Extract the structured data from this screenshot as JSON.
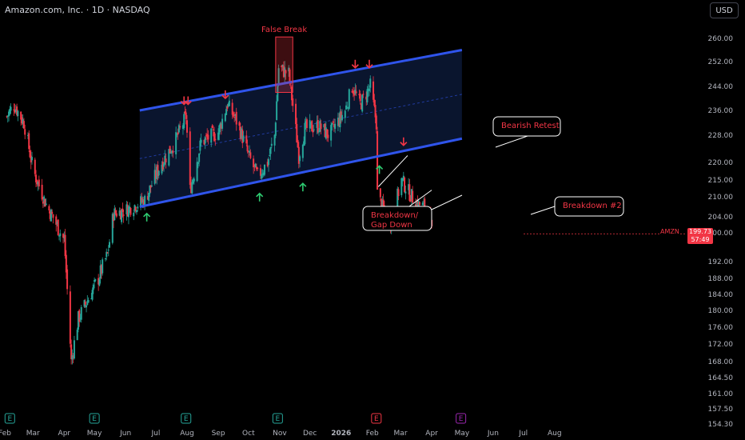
{
  "header": {
    "symbol_line": "Amazon.com, Inc. · 1D · NASDAQ",
    "currency_button": "USD"
  },
  "price_tag": {
    "ticker": "AMZN",
    "price": "199.73",
    "countdown": "57:49"
  },
  "chart_data": {
    "type": "candlestick",
    "ticker": "AMZN",
    "timeframe": "1D",
    "exchange": "NASDAQ",
    "y_axis_ticks": [
      "260.00",
      "252.00",
      "244.00",
      "236.00",
      "228.00",
      "220.00",
      "215.00",
      "210.00",
      "204.00",
      "200.00",
      "192.00",
      "188.00",
      "184.00",
      "180.00",
      "176.00",
      "172.00",
      "168.00",
      "164.50",
      "161.00",
      "157.50",
      "154.30"
    ],
    "x_axis_ticks": [
      "Feb",
      "Mar",
      "Apr",
      "May",
      "Jun",
      "Jul",
      "Aug",
      "Sep",
      "Oct",
      "Nov",
      "Dec",
      "2026",
      "Feb",
      "Mar",
      "Apr",
      "May",
      "Jun",
      "Jul",
      "Aug"
    ],
    "price_path": [
      [
        "2025-02-03",
        234
      ],
      [
        "2025-02-10",
        238
      ],
      [
        "2025-02-20",
        232
      ],
      [
        "2025-03-01",
        218
      ],
      [
        "2025-03-15",
        207
      ],
      [
        "2025-04-01",
        198
      ],
      [
        "2025-04-08",
        168
      ],
      [
        "2025-04-15",
        178
      ],
      [
        "2025-04-25",
        183
      ],
      [
        "2025-05-05",
        188
      ],
      [
        "2025-05-14",
        194
      ],
      [
        "2025-05-20",
        205
      ],
      [
        "2025-06-01",
        206
      ],
      [
        "2025-06-20",
        209
      ],
      [
        "2025-07-05",
        219
      ],
      [
        "2025-07-20",
        226
      ],
      [
        "2025-07-31",
        234
      ],
      [
        "2025-08-04",
        212
      ],
      [
        "2025-08-15",
        226
      ],
      [
        "2025-09-01",
        229
      ],
      [
        "2025-09-10",
        238
      ],
      [
        "2025-09-20",
        232
      ],
      [
        "2025-10-01",
        222
      ],
      [
        "2025-10-10",
        216
      ],
      [
        "2025-10-20",
        220
      ],
      [
        "2025-10-27",
        228
      ],
      [
        "2025-10-31",
        250
      ],
      [
        "2025-11-10",
        248
      ],
      [
        "2025-11-20",
        222
      ],
      [
        "2025-11-26",
        230
      ],
      [
        "2025-12-10",
        231
      ],
      [
        "2025-12-20",
        228
      ],
      [
        "2026-01-05",
        236
      ],
      [
        "2026-01-12",
        244
      ],
      [
        "2026-01-20",
        238
      ],
      [
        "2026-01-30",
        244
      ],
      [
        "2026-02-05",
        232
      ],
      [
        "2026-02-06",
        211
      ],
      [
        "2026-02-12",
        206
      ],
      [
        "2026-02-20",
        203
      ],
      [
        "2026-03-02",
        215
      ],
      [
        "2026-03-10",
        211
      ],
      [
        "2026-03-17",
        208
      ],
      [
        "2026-03-25",
        207
      ],
      [
        "2026-03-30",
        204
      ],
      [
        "2026-04-01",
        199.73
      ]
    ],
    "last_price": 199.73,
    "channel": {
      "upper": [
        [
          "2025-06-15",
          236
        ],
        [
          "2026-05-01",
          256
        ]
      ],
      "lower": [
        [
          "2025-06-15",
          207
        ],
        [
          "2026-05-01",
          227
        ]
      ]
    },
    "annotations": {
      "false_break": "False Break",
      "bearish_retest": "Bearish Retest",
      "breakdown_gap_line1": "Breakdown/",
      "breakdown_gap_line2": "Gap Down",
      "breakdown_2": "Breakdown #2"
    },
    "earnings_markers": [
      {
        "date": "2025-02-06",
        "label": "E"
      },
      {
        "date": "2025-05-01",
        "label": "E"
      },
      {
        "date": "2025-07-31",
        "label": "E"
      },
      {
        "date": "2025-10-30",
        "label": "E"
      },
      {
        "date": "2026-02-05",
        "label": "E"
      },
      {
        "date": "2026-04-30",
        "label": "E"
      }
    ],
    "colors": {
      "up": "#26a69a",
      "down": "#f23645",
      "channel": "#2f54eb",
      "channel_fill": "#0b1733",
      "up_arrow": "#2ecc71",
      "down_arrow": "#f23645",
      "earnings": "#26a69a",
      "upcoming_earnings": "#9c27b0"
    }
  }
}
